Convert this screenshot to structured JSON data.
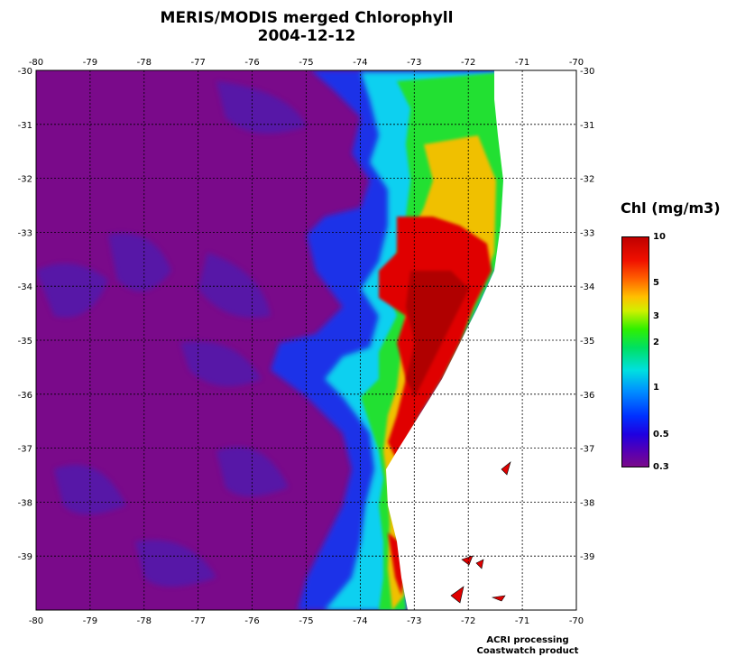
{
  "title": "MERIS/MODIS merged Chlorophyll",
  "date": "2004-12-12",
  "x_ticks": [
    "-80",
    "-79",
    "-78",
    "-77",
    "-76",
    "-75",
    "-74",
    "-73",
    "-72",
    "-71",
    "-70"
  ],
  "y_ticks": [
    "-30",
    "-31",
    "-32",
    "-33",
    "-34",
    "-35",
    "-36",
    "-37",
    "-38",
    "-39"
  ],
  "colorbar": {
    "title": "Chl (mg/m3)",
    "labels": [
      "10",
      "5",
      "3",
      "2",
      "1",
      "0.5",
      "0.3"
    ]
  },
  "footer": {
    "line1": "ACRI processing",
    "line2": "Coastwatch product"
  },
  "colors": {
    "ocean_low": "#7a0a8a",
    "coastal_high": "#e00000",
    "land": "#ffffff"
  },
  "chart_data": {
    "type": "heatmap",
    "title": "MERIS/MODIS merged Chlorophyll",
    "subtitle": "2004-12-12",
    "xlim": [
      -80,
      -70
    ],
    "ylim": [
      -40,
      -30
    ],
    "colorscale": "log",
    "zlim": [
      0.3,
      10
    ],
    "grid": true
  }
}
